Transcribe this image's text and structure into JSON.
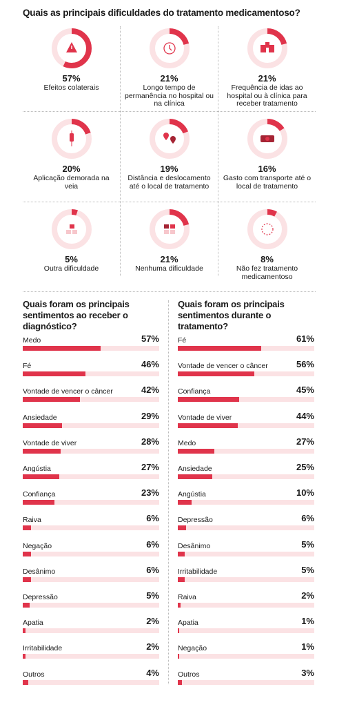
{
  "colors": {
    "accent": "#e0344b",
    "track": "#fbe2e4",
    "icon_dark": "#a52434"
  },
  "difficulties": {
    "title": "Quais as principais dificuldades do tratamento medicamentoso?",
    "items": [
      {
        "pct_label": "57%",
        "value": 57,
        "label": "Efeitos colaterais",
        "icon": "warning-icon"
      },
      {
        "pct_label": "21%",
        "value": 21,
        "label": "Longo tempo de permanência no hospital ou na clínica",
        "icon": "clock-icon"
      },
      {
        "pct_label": "21%",
        "value": 21,
        "label": "Frequência de idas ao hospital ou à clínica para receber tratamento",
        "icon": "hospital-icon"
      },
      {
        "pct_label": "20%",
        "value": 20,
        "label": "Aplicação demorada na veia",
        "icon": "iv-drip-icon"
      },
      {
        "pct_label": "19%",
        "value": 19,
        "label": "Distância e deslocamento até o local de tratamento",
        "icon": "map-pin-icon"
      },
      {
        "pct_label": "16%",
        "value": 16,
        "label": "Gasto com transporte até o local de tratamento",
        "icon": "money-icon"
      },
      {
        "pct_label": "5%",
        "value": 5,
        "label": "Outra dificuldade",
        "icon": "puzzle-icon"
      },
      {
        "pct_label": "21%",
        "value": 21,
        "label": "Nenhuma dificuldade",
        "icon": "puzzle-pieces-icon"
      },
      {
        "pct_label": "8%",
        "value": 8,
        "label": "Não fez tratamento medicamentoso",
        "icon": "dashed-circle-icon"
      }
    ]
  },
  "chart_data": [
    {
      "type": "bar",
      "title": "Quais foram os principais sentimentos ao receber o diagnóstico?",
      "categories": [
        "Medo",
        "Fé",
        "Vontade de vencer o câncer",
        "Ansiedade",
        "Vontade de viver",
        "Angústia",
        "Confiança",
        "Raiva",
        "Negação",
        "Desânimo",
        "Depressão",
        "Apatia",
        "Irritabilidade",
        "Outros"
      ],
      "values": [
        57,
        46,
        42,
        29,
        28,
        27,
        23,
        6,
        6,
        6,
        5,
        2,
        2,
        4
      ],
      "value_labels": [
        "57%",
        "46%",
        "42%",
        "29%",
        "28%",
        "27%",
        "23%",
        "6%",
        "6%",
        "6%",
        "5%",
        "2%",
        "2%",
        "4%"
      ],
      "ylim": [
        0,
        100
      ]
    },
    {
      "type": "bar",
      "title": "Quais foram os principais sentimentos durante o tratamento?",
      "categories": [
        "Fé",
        "Vontade de vencer o câncer",
        "Confiança",
        "Vontade de viver",
        "Medo",
        "Ansiedade",
        "Angústia",
        "Depressão",
        "Desânimo",
        "Irritabilidade",
        "Raiva",
        "Apatia",
        "Negação",
        "Outros"
      ],
      "values": [
        61,
        56,
        45,
        44,
        27,
        25,
        10,
        6,
        5,
        5,
        2,
        1,
        1,
        3
      ],
      "value_labels": [
        "61%",
        "56%",
        "45%",
        "44%",
        "27%",
        "25%",
        "10%",
        "6%",
        "5%",
        "5%",
        "2%",
        "1%",
        "1%",
        "3%"
      ],
      "ylim": [
        0,
        100
      ]
    }
  ]
}
